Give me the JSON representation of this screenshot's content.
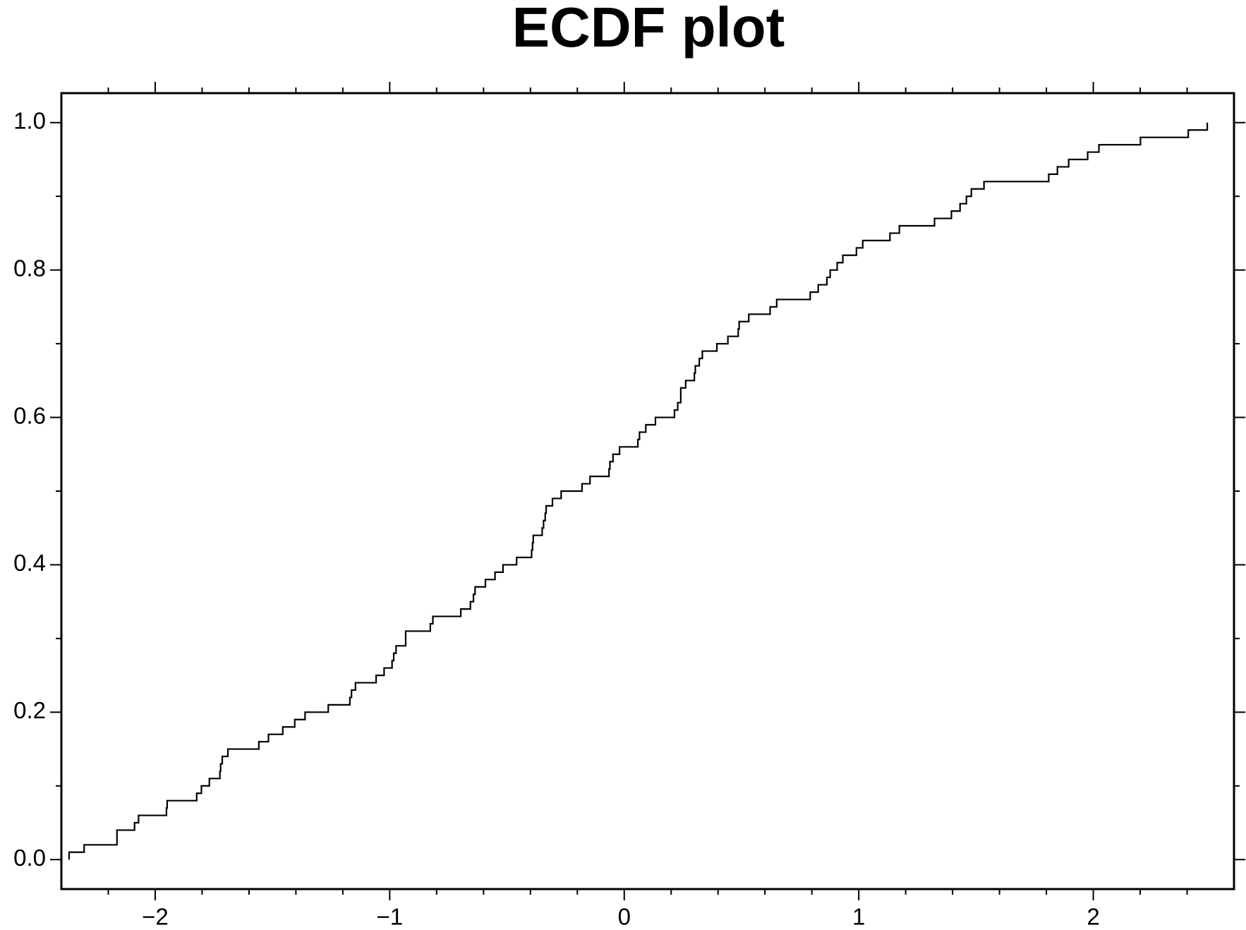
{
  "chart_data": {
    "type": "step",
    "title": "ECDF plot",
    "x": [
      -2.367,
      -2.303,
      -2.163,
      -2.088,
      -2.071,
      -1.952,
      -1.949,
      -1.823,
      -1.803,
      -1.769,
      -1.724,
      -1.721,
      -1.714,
      -1.69,
      -1.558,
      -1.517,
      -1.456,
      -1.405,
      -1.361,
      -1.262,
      -1.17,
      -1.163,
      -1.146,
      -1.058,
      -1.024,
      -0.99,
      -0.983,
      -0.973,
      -0.932,
      -0.827,
      -0.816,
      -0.697,
      -0.656,
      -0.643,
      -0.636,
      -0.592,
      -0.551,
      -0.517,
      -0.459,
      -0.395,
      -0.391,
      -0.388,
      -0.35,
      -0.344,
      -0.337,
      -0.333,
      -0.306,
      -0.269,
      -0.18,
      -0.146,
      -0.065,
      -0.061,
      -0.048,
      -0.02,
      0.058,
      0.065,
      0.092,
      0.133,
      0.214,
      0.228,
      0.241,
      0.262,
      0.299,
      0.303,
      0.32,
      0.333,
      0.395,
      0.442,
      0.486,
      0.49,
      0.531,
      0.622,
      0.65,
      0.793,
      0.827,
      0.864,
      0.878,
      0.908,
      0.932,
      0.99,
      1.017,
      1.133,
      1.173,
      1.323,
      1.395,
      1.432,
      1.459,
      1.48,
      1.534,
      1.81,
      1.847,
      1.895,
      1.976,
      2.024,
      2.201,
      2.405,
      2.486
    ],
    "values": [
      0.01,
      0.02,
      0.04,
      0.05,
      0.06,
      0.07,
      0.08,
      0.09,
      0.1,
      0.11,
      0.12,
      0.13,
      0.14,
      0.15,
      0.16,
      0.17,
      0.18,
      0.19,
      0.2,
      0.21,
      0.22,
      0.23,
      0.24,
      0.25,
      0.26,
      0.27,
      0.28,
      0.29,
      0.31,
      0.32,
      0.33,
      0.34,
      0.35,
      0.36,
      0.37,
      0.38,
      0.39,
      0.4,
      0.41,
      0.42,
      0.43,
      0.44,
      0.45,
      0.46,
      0.47,
      0.48,
      0.49,
      0.5,
      0.51,
      0.52,
      0.53,
      0.54,
      0.55,
      0.56,
      0.57,
      0.58,
      0.59,
      0.6,
      0.61,
      0.62,
      0.64,
      0.65,
      0.66,
      0.67,
      0.68,
      0.69,
      0.7,
      0.71,
      0.72,
      0.73,
      0.74,
      0.75,
      0.76,
      0.77,
      0.78,
      0.79,
      0.8,
      0.81,
      0.82,
      0.83,
      0.84,
      0.85,
      0.86,
      0.87,
      0.88,
      0.89,
      0.9,
      0.91,
      0.92,
      0.93,
      0.94,
      0.95,
      0.96,
      0.97,
      0.98,
      0.99,
      1.0
    ],
    "color": "#000000",
    "xlim": [
      -2.4,
      2.6
    ],
    "xticks": [
      {
        "value": -2,
        "label": "−2"
      },
      {
        "value": -1,
        "label": "−1"
      },
      0,
      1,
      2
    ],
    "xminorticks": [
      -2.2,
      -1.8,
      -1.6,
      -1.4,
      -1.2,
      -0.8,
      -0.6,
      -0.4,
      -0.2,
      0.2,
      0.4,
      0.6,
      0.8,
      1.2,
      1.4,
      1.6,
      1.8,
      2.2,
      2.4
    ],
    "ylim": [
      -0.04,
      1.04
    ],
    "yticks": [
      {
        "value": 0,
        "label": "0.0"
      },
      0.2,
      0.4,
      0.6,
      0.8,
      {
        "value": 1,
        "label": "1.0"
      }
    ],
    "yminorticks": [
      0.1,
      0.3,
      0.5,
      0.7,
      0.9
    ]
  }
}
